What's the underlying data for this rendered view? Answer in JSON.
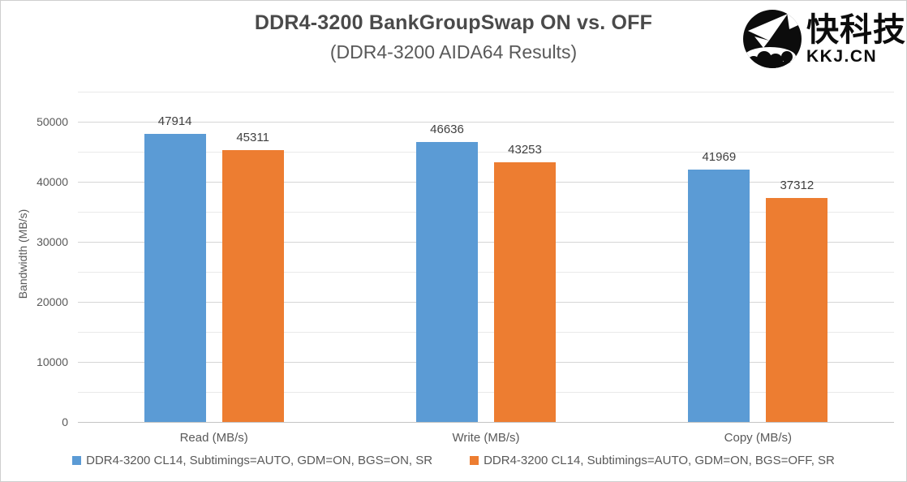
{
  "header": {
    "title": "DDR4-3200 BankGroupSwap ON vs. OFF",
    "subtitle": "(DDR4-3200 AIDA64 Results)"
  },
  "logo": {
    "cn_text": "快科技",
    "domain": "KKJ.CN",
    "icon": "paper-plane-badge-icon",
    "color": "#0c0c0c"
  },
  "chart_data": {
    "type": "bar",
    "title": "DDR4-3200 BankGroupSwap ON vs. OFF",
    "subtitle": "(DDR4-3200 AIDA64 Results)",
    "categories": [
      "Read (MB/s)",
      "Write (MB/s)",
      "Copy (MB/s)"
    ],
    "series": [
      {
        "name": "DDR4-3200 CL14, Subtimings=AUTO, GDM=ON, BGS=ON, SR",
        "color": "#5B9BD5",
        "values": [
          47914,
          46636,
          41969
        ]
      },
      {
        "name": "DDR4-3200 CL14, Subtimings=AUTO, GDM=ON, BGS=OFF, SR",
        "color": "#ED7D31",
        "values": [
          45311,
          43253,
          37312
        ]
      }
    ],
    "xlabel": "",
    "ylabel": "Bandwidth (MB/s)",
    "ylim": [
      0,
      55000
    ],
    "yticks": [
      0,
      10000,
      20000,
      30000,
      40000,
      50000
    ],
    "minor_tick_step": 5000,
    "grid": true,
    "legend_position": "bottom",
    "data_labels": true
  }
}
